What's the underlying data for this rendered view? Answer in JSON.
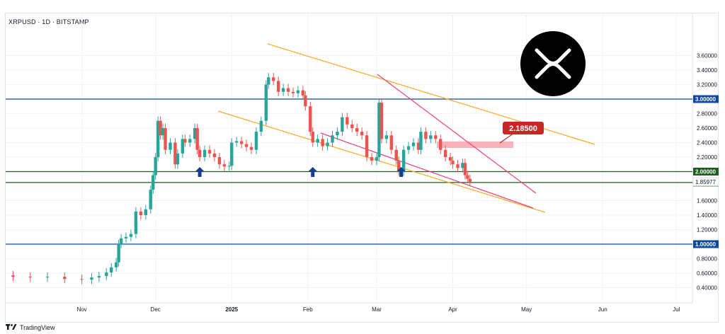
{
  "header": {
    "title": "XRPUSD · 1D · BITSTAMP"
  },
  "footer": {
    "brand": "TradingView",
    "logo_icon": "tradingview-logo-icon"
  },
  "colors": {
    "up": "#26a69a",
    "down": "#ef5350",
    "channel": "#ffa726",
    "wedge": "#ec407a",
    "support_green": "#1b5e20",
    "level_blue": "#0d47a1",
    "zone": "#f8a5ad",
    "callout": "#c62828"
  },
  "chart_data": {
    "type": "candlestick",
    "symbol": "XRPUSD",
    "timeframe": "1D",
    "exchange": "BITSTAMP",
    "ylim": [
      0.25,
      3.75
    ],
    "y_ticks": [
      "3.60000",
      "3.40000",
      "3.20000",
      "2.80000",
      "2.60000",
      "2.40000",
      "2.20000",
      "1.60000",
      "1.40000",
      "1.20000",
      "0.80000",
      "0.60000",
      "0.40000"
    ],
    "x_ticks": [
      "Nov",
      "Dec",
      "2025",
      "Feb",
      "Mar",
      "Apr",
      "May",
      "Jun",
      "Jul"
    ],
    "horizontal_levels": [
      {
        "value": 3.0,
        "label": "3.00000",
        "color": "#0d47a1"
      },
      {
        "value": 2.0,
        "label": "2.00000",
        "color": "#1b5e20"
      },
      {
        "value": 1.85,
        "label": "1.85000",
        "color": "#1b5e20"
      },
      {
        "value": 1.0,
        "label": "1.00000",
        "color": "#0d47a1"
      }
    ],
    "last_price": {
      "value": 1.85977,
      "label": "1.85977"
    },
    "callout": {
      "label": "2.18500",
      "value": 2.185
    },
    "support_arrows": [
      "2024-12-19",
      "2025-02-03",
      "2025-03-11"
    ],
    "candles": [
      [
        "2024-10-04",
        0.57,
        0.55
      ],
      [
        "2024-10-11",
        0.55,
        0.54
      ],
      [
        "2024-10-18",
        0.54,
        0.55
      ],
      [
        "2024-10-25",
        0.55,
        0.52
      ],
      [
        "2024-11-01",
        0.52,
        0.51
      ],
      [
        "2024-11-05",
        0.51,
        0.54
      ],
      [
        "2024-11-08",
        0.54,
        0.56
      ],
      [
        "2024-11-11",
        0.56,
        0.61
      ],
      [
        "2024-11-13",
        0.61,
        0.68
      ],
      [
        "2024-11-15",
        0.68,
        0.75
      ],
      [
        "2024-11-16",
        0.75,
        1.0
      ],
      [
        "2024-11-17",
        1.0,
        1.08
      ],
      [
        "2024-11-19",
        1.08,
        1.1
      ],
      [
        "2024-11-21",
        1.1,
        1.14
      ],
      [
        "2024-11-23",
        1.14,
        1.45
      ],
      [
        "2024-11-25",
        1.45,
        1.4
      ],
      [
        "2024-11-27",
        1.4,
        1.48
      ],
      [
        "2024-11-29",
        1.48,
        1.75
      ],
      [
        "2024-11-30",
        1.75,
        1.95
      ],
      [
        "2024-12-01",
        1.95,
        2.2
      ],
      [
        "2024-12-02",
        2.2,
        2.7
      ],
      [
        "2024-12-03",
        2.7,
        2.5
      ],
      [
        "2024-12-04",
        2.5,
        2.6
      ],
      [
        "2024-12-05",
        2.6,
        2.3
      ],
      [
        "2024-12-07",
        2.3,
        2.4
      ],
      [
        "2024-12-09",
        2.4,
        2.1
      ],
      [
        "2024-12-10",
        2.1,
        2.25
      ],
      [
        "2024-12-12",
        2.25,
        2.45
      ],
      [
        "2024-12-13",
        2.45,
        2.4
      ],
      [
        "2024-12-15",
        2.4,
        2.45
      ],
      [
        "2024-12-17",
        2.45,
        2.6
      ],
      [
        "2024-12-18",
        2.6,
        2.3
      ],
      [
        "2024-12-19",
        2.3,
        2.2
      ],
      [
        "2024-12-21",
        2.2,
        2.3
      ],
      [
        "2024-12-23",
        2.3,
        2.25
      ],
      [
        "2024-12-25",
        2.25,
        2.2
      ],
      [
        "2024-12-27",
        2.2,
        2.1
      ],
      [
        "2024-12-29",
        2.1,
        2.07
      ],
      [
        "2024-12-31",
        2.07,
        2.08
      ],
      [
        "2025-01-01",
        2.08,
        2.4
      ],
      [
        "2025-01-03",
        2.4,
        2.42
      ],
      [
        "2025-01-05",
        2.42,
        2.38
      ],
      [
        "2025-01-07",
        2.38,
        2.34
      ],
      [
        "2025-01-09",
        2.34,
        2.3
      ],
      [
        "2025-01-11",
        2.3,
        2.55
      ],
      [
        "2025-01-13",
        2.55,
        2.7
      ],
      [
        "2025-01-15",
        2.7,
        3.2
      ],
      [
        "2025-01-16",
        3.2,
        3.3
      ],
      [
        "2025-01-18",
        3.3,
        3.25
      ],
      [
        "2025-01-20",
        3.25,
        3.1
      ],
      [
        "2025-01-22",
        3.1,
        3.15
      ],
      [
        "2025-01-24",
        3.15,
        3.1
      ],
      [
        "2025-01-26",
        3.1,
        3.08
      ],
      [
        "2025-01-28",
        3.08,
        3.12
      ],
      [
        "2025-01-30",
        3.12,
        3.05
      ],
      [
        "2025-01-31",
        3.05,
        2.9
      ],
      [
        "2025-02-02",
        2.9,
        2.55
      ],
      [
        "2025-02-03",
        2.55,
        2.4
      ],
      [
        "2025-02-05",
        2.4,
        2.45
      ],
      [
        "2025-02-07",
        2.45,
        2.35
      ],
      [
        "2025-02-09",
        2.35,
        2.4
      ],
      [
        "2025-02-11",
        2.4,
        2.5
      ],
      [
        "2025-02-13",
        2.5,
        2.55
      ],
      [
        "2025-02-15",
        2.55,
        2.75
      ],
      [
        "2025-02-17",
        2.75,
        2.65
      ],
      [
        "2025-02-19",
        2.65,
        2.6
      ],
      [
        "2025-02-21",
        2.6,
        2.55
      ],
      [
        "2025-02-23",
        2.55,
        2.5
      ],
      [
        "2025-02-25",
        2.5,
        2.2
      ],
      [
        "2025-02-27",
        2.2,
        2.15
      ],
      [
        "2025-03-01",
        2.15,
        2.2
      ],
      [
        "2025-03-02",
        2.2,
        2.95
      ],
      [
        "2025-03-03",
        2.95,
        2.45
      ],
      [
        "2025-03-05",
        2.45,
        2.5
      ],
      [
        "2025-03-07",
        2.5,
        2.3
      ],
      [
        "2025-03-09",
        2.3,
        2.15
      ],
      [
        "2025-03-10",
        2.15,
        2.0
      ],
      [
        "2025-03-12",
        2.0,
        2.3
      ],
      [
        "2025-03-14",
        2.3,
        2.35
      ],
      [
        "2025-03-16",
        2.35,
        2.4
      ],
      [
        "2025-03-18",
        2.4,
        2.3
      ],
      [
        "2025-03-19",
        2.3,
        2.55
      ],
      [
        "2025-03-21",
        2.55,
        2.45
      ],
      [
        "2025-03-23",
        2.45,
        2.5
      ],
      [
        "2025-03-25",
        2.5,
        2.45
      ],
      [
        "2025-03-27",
        2.45,
        2.3
      ],
      [
        "2025-03-29",
        2.3,
        2.2
      ],
      [
        "2025-03-31",
        2.2,
        2.15
      ],
      [
        "2025-04-01",
        2.15,
        2.1
      ],
      [
        "2025-04-03",
        2.1,
        2.05
      ],
      [
        "2025-04-05",
        2.05,
        2.12
      ],
      [
        "2025-04-06",
        2.12,
        1.95
      ],
      [
        "2025-04-07",
        1.95,
        1.9
      ],
      [
        "2025-04-08",
        1.9,
        1.86
      ]
    ]
  }
}
